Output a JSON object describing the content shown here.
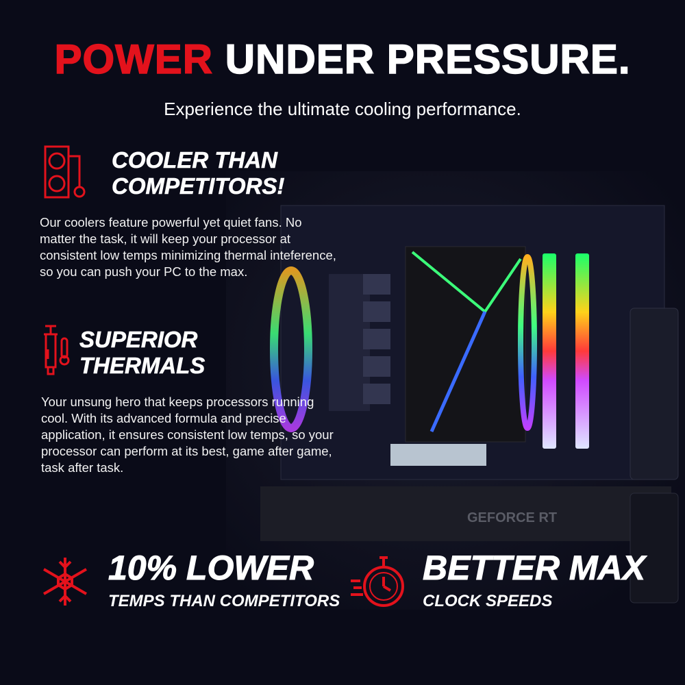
{
  "headline": {
    "accent": "POWER",
    "rest": "UNDER PRESSURE."
  },
  "subtitle": "Experience the ultimate cooling performance.",
  "features": [
    {
      "icon": "liquid-cooler-icon",
      "title_line1": "COOLER THAN",
      "title_line2": "COMPETITORS!",
      "body": "Our coolers feature powerful yet quiet fans. No matter the task, it will keep your processor at consistent low temps minimizing thermal inteference, so you can push your PC to the max."
    },
    {
      "icon": "thermal-paste-syringe-icon",
      "title_line1": "SUPERIOR",
      "title_line2": "THERMALS",
      "body": "Your unsung hero that keeps processors running cool. With its advanced formula and precise application, it ensures consistent low temps, so your processor can perform at its best, game after game, task after task."
    }
  ],
  "stats": [
    {
      "icon": "snowflake-icon",
      "big": "10% LOWER",
      "sub": "TEMPS THAN COMPETITORS"
    },
    {
      "icon": "stopwatch-icon",
      "big": "BETTER MAX",
      "sub": "CLOCK SPEEDS"
    }
  ],
  "photo": {
    "gpu_label": "GEFORCE RT"
  },
  "colors": {
    "accent": "#e3121c",
    "background": "#0a0b18"
  }
}
